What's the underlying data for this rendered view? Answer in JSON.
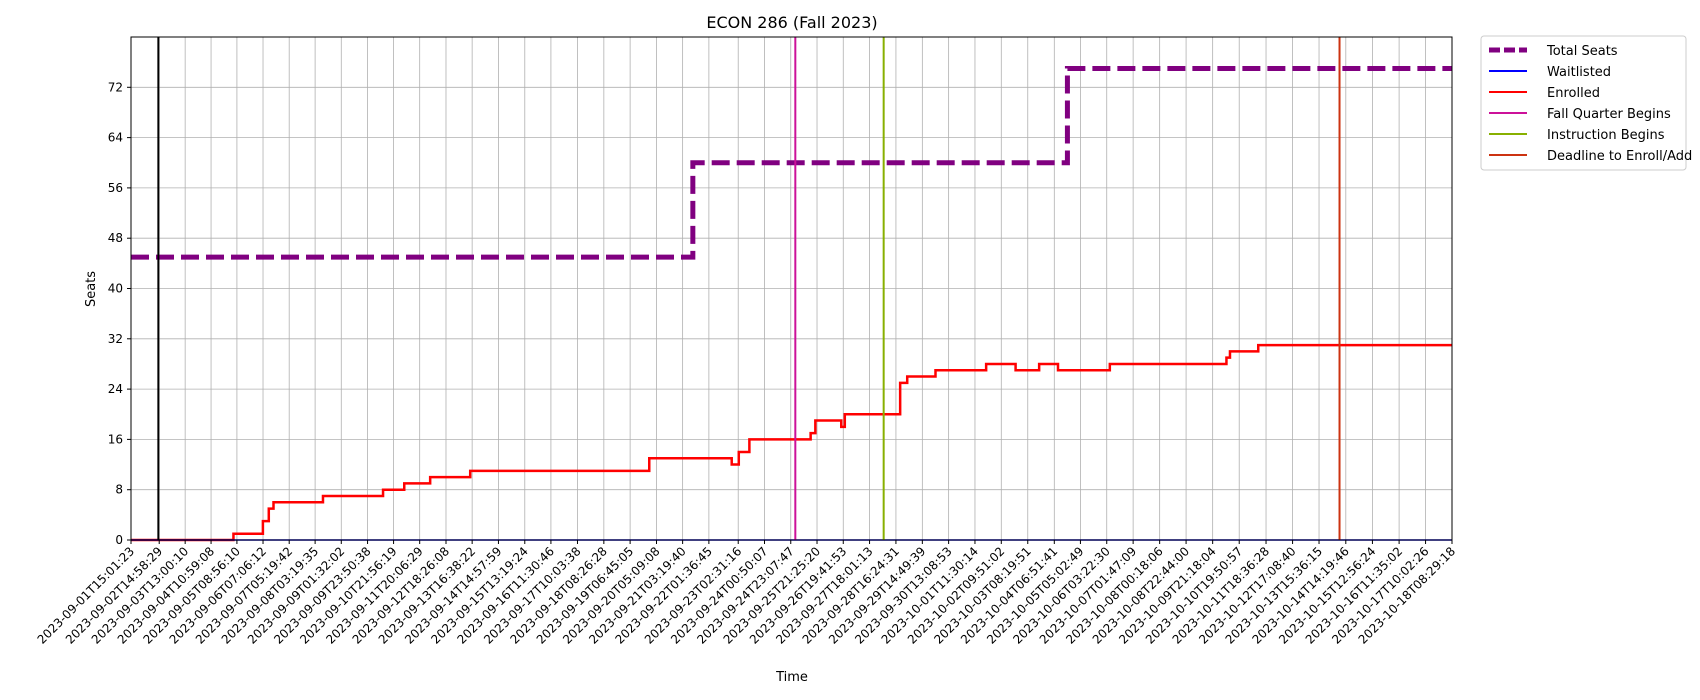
{
  "chart_data": {
    "type": "line",
    "title": "ECON 286 (Fall 2023)",
    "xlabel": "Time",
    "ylabel": "Seats",
    "ylim": [
      0,
      80
    ],
    "yticks": [
      0,
      8,
      16,
      24,
      32,
      40,
      48,
      56,
      64,
      72
    ],
    "x_range": [
      "2023-09-01T15:01:23",
      "2023-10-18T08:29:18"
    ],
    "xticks": [
      "2023-09-01T15:01:23",
      "2023-09-02T14:58:29",
      "2023-09-03T13:00:10",
      "2023-09-04T10:59:08",
      "2023-09-05T08:56:10",
      "2023-09-06T07:06:12",
      "2023-09-07T05:19:42",
      "2023-09-08T03:19:35",
      "2023-09-09T01:32:02",
      "2023-09-09T23:50:38",
      "2023-09-10T21:56:19",
      "2023-09-11T20:06:29",
      "2023-09-12T18:26:08",
      "2023-09-13T16:38:22",
      "2023-09-14T14:57:59",
      "2023-09-15T13:19:24",
      "2023-09-16T11:30:46",
      "2023-09-17T10:03:38",
      "2023-09-18T08:26:28",
      "2023-09-19T06:45:05",
      "2023-09-20T05:09:08",
      "2023-09-21T03:19:40",
      "2023-09-22T01:36:45",
      "2023-09-23T02:31:16",
      "2023-09-24T00:50:07",
      "2023-09-24T23:07:47",
      "2023-09-25T21:25:20",
      "2023-09-26T19:41:53",
      "2023-09-27T18:01:13",
      "2023-09-28T16:24:31",
      "2023-09-29T14:49:39",
      "2023-09-30T13:08:53",
      "2023-10-01T11:30:14",
      "2023-10-02T09:51:02",
      "2023-10-03T08:19:51",
      "2023-10-04T06:51:41",
      "2023-10-05T05:02:49",
      "2023-10-06T03:22:30",
      "2023-10-07T01:47:09",
      "2023-10-08T00:18:06",
      "2023-10-08T22:44:00",
      "2023-10-09T21:18:04",
      "2023-10-10T19:50:57",
      "2023-10-11T18:36:28",
      "2023-10-12T17:08:40",
      "2023-10-13T15:36:15",
      "2023-10-14T14:19:46",
      "2023-10-15T12:56:24",
      "2023-10-16T11:35:02",
      "2023-10-17T10:02:26",
      "2023-10-18T08:29:18"
    ],
    "grid": true,
    "legend_position": "outside-top-right",
    "series": [
      {
        "name": "Total Seats",
        "color": "#800080",
        "style": "dashed",
        "step": true,
        "points": [
          [
            "2023-09-01T15:01:23",
            45
          ],
          [
            "2023-09-21T12:00:00",
            45
          ],
          [
            "2023-09-21T12:00:00",
            60
          ],
          [
            "2023-10-04T18:00:00",
            60
          ],
          [
            "2023-10-04T18:00:00",
            75
          ],
          [
            "2023-10-18T08:29:18",
            75
          ]
        ]
      },
      {
        "name": "Waitlisted",
        "color": "#0000ff",
        "style": "solid",
        "step": true,
        "points": [
          [
            "2023-09-01T15:01:23",
            0
          ],
          [
            "2023-10-18T08:29:18",
            0
          ]
        ]
      },
      {
        "name": "Enrolled",
        "color": "#ff0000",
        "style": "solid",
        "step": true,
        "points": [
          [
            "2023-09-01T15:01:23",
            0
          ],
          [
            "2023-09-05T06:00:00",
            1
          ],
          [
            "2023-09-06T07:00:00",
            3
          ],
          [
            "2023-09-06T12:00:00",
            5
          ],
          [
            "2023-09-06T16:00:00",
            6
          ],
          [
            "2023-09-08T10:00:00",
            7
          ],
          [
            "2023-09-10T13:00:00",
            8
          ],
          [
            "2023-09-11T07:00:00",
            9
          ],
          [
            "2023-09-12T05:00:00",
            10
          ],
          [
            "2023-09-13T15:00:00",
            11
          ],
          [
            "2023-09-19T23:00:00",
            13
          ],
          [
            "2023-09-22T21:00:00",
            12
          ],
          [
            "2023-09-23T03:00:00",
            14
          ],
          [
            "2023-09-23T12:00:00",
            16
          ],
          [
            "2023-09-25T16:00:00",
            17
          ],
          [
            "2023-09-25T20:00:00",
            19
          ],
          [
            "2023-09-26T18:00:00",
            18
          ],
          [
            "2023-09-26T21:00:00",
            20
          ],
          [
            "2023-09-28T20:00:00",
            25
          ],
          [
            "2023-09-29T02:00:00",
            26
          ],
          [
            "2023-09-30T02:00:00",
            27
          ],
          [
            "2023-10-01T21:00:00",
            28
          ],
          [
            "2023-10-02T22:00:00",
            27
          ],
          [
            "2023-10-03T18:00:00",
            28
          ],
          [
            "2023-10-04T10:00:00",
            27
          ],
          [
            "2023-10-06T06:00:00",
            28
          ],
          [
            "2023-10-10T09:00:00",
            29
          ],
          [
            "2023-10-10T12:00:00",
            30
          ],
          [
            "2023-10-11T12:00:00",
            31
          ],
          [
            "2023-10-18T08:29:18",
            31
          ]
        ]
      }
    ],
    "vertical_lines": [
      {
        "name": "",
        "x": "2023-09-02T14:15:00",
        "color": "#000000"
      },
      {
        "name": "Fall Quarter Begins",
        "x": "2023-09-25T03:00:00",
        "color": "#cc1199"
      },
      {
        "name": "Instruction Begins",
        "x": "2023-09-28T06:00:00",
        "color": "#88b000"
      },
      {
        "name": "Deadline to Enroll/Add",
        "x": "2023-10-14T09:00:00",
        "color": "#cc3311"
      }
    ],
    "legend": [
      {
        "label": "Total Seats",
        "color": "#800080",
        "style": "dashed"
      },
      {
        "label": "Waitlisted",
        "color": "#0000ff",
        "style": "solid"
      },
      {
        "label": "Enrolled",
        "color": "#ff0000",
        "style": "solid"
      },
      {
        "label": "Fall Quarter Begins",
        "color": "#cc1199",
        "style": "solid"
      },
      {
        "label": "Instruction Begins",
        "color": "#88b000",
        "style": "solid"
      },
      {
        "label": "Deadline to Enroll/Add",
        "color": "#cc3311",
        "style": "solid"
      }
    ]
  }
}
